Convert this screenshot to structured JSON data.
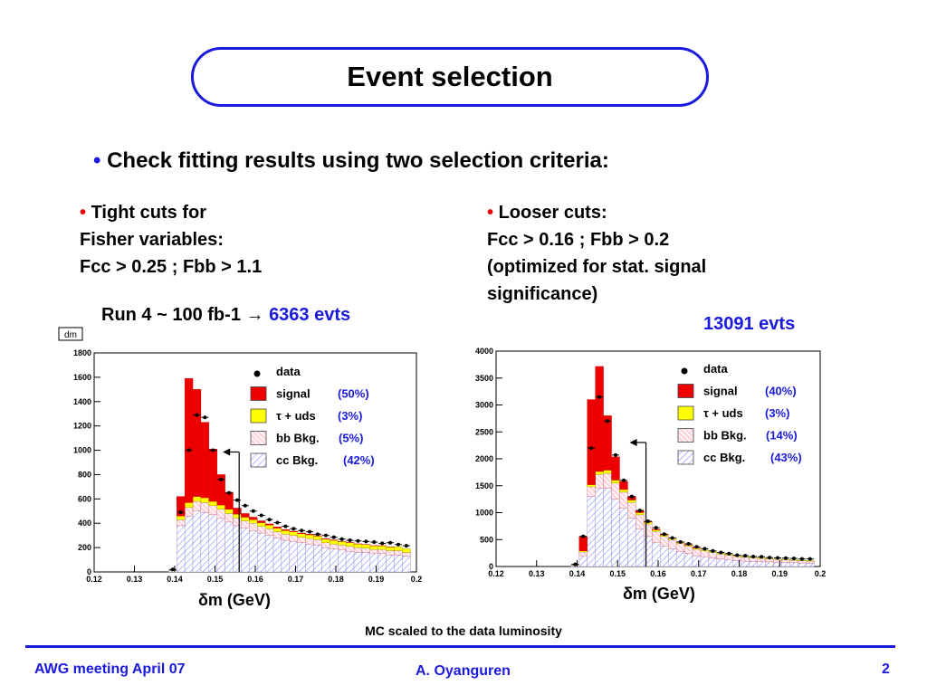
{
  "title": "Event selection",
  "main_bullet": {
    "symbol": "•",
    "text": "Check fitting results using two selection criteria:"
  },
  "left_column": {
    "symbol": "•",
    "line1": "Tight cuts for",
    "line2": "Fisher variables:",
    "line3": "Fcc > 0.25 ; Fbb > 1.1"
  },
  "right_column": {
    "symbol": "•",
    "line1": "Looser cuts:",
    "line2": "Fcc > 0.16 ; Fbb > 0.2",
    "line3": "(optimized for stat. signal",
    "line4": "significance)"
  },
  "run_label": {
    "prefix": "Run 4  ~ 100 fb-1 → ",
    "events": "6363 evts"
  },
  "right_events": "13091 evts",
  "xlabel_left": "δm  (GeV)",
  "xlabel_right": "δm  (GeV)",
  "note": "MC scaled to the data luminosity",
  "footer": {
    "left": "AWG meeting April 07",
    "center": "A. Oyanguren",
    "right": "2"
  },
  "colors": {
    "accent": "#1a1adf",
    "signal": "#ee0000",
    "tau_uds": "#ffff00",
    "bb": "#ffb0c0",
    "cc": "#a8a8ff"
  },
  "chart_data": [
    {
      "type": "bar",
      "stacked": true,
      "histogram_title": "dm",
      "xlim": [
        0.12,
        0.2
      ],
      "ylim": [
        0,
        1800
      ],
      "x_ticks": [
        "0.12",
        "0.13",
        "0.14",
        "0.15",
        "0.16",
        "0.17",
        "0.18",
        "0.19",
        "0.2"
      ],
      "y_ticks": [
        "0",
        "200",
        "400",
        "600",
        "800",
        "1000",
        "1200",
        "1400",
        "1600",
        "1800"
      ],
      "x": [
        0.1395,
        0.1415,
        0.1435,
        0.1455,
        0.1475,
        0.1495,
        0.1515,
        0.1535,
        0.1555,
        0.1575,
        0.1595,
        0.1615,
        0.1635,
        0.1655,
        0.1675,
        0.1695,
        0.1715,
        0.1735,
        0.1755,
        0.1775,
        0.1795,
        0.1815,
        0.1835,
        0.1855,
        0.1875,
        0.1895,
        0.1915,
        0.1935,
        0.1955,
        0.1975
      ],
      "cut_value": 0.156,
      "series": [
        {
          "name": "cc Bkg.",
          "fraction": "(42%)",
          "values": [
            10,
            380,
            460,
            500,
            490,
            470,
            440,
            410,
            380,
            360,
            340,
            320,
            300,
            280,
            260,
            250,
            240,
            230,
            220,
            200,
            190,
            180,
            170,
            160,
            160,
            150,
            150,
            140,
            140,
            130
          ]
        },
        {
          "name": "bb Bkg.",
          "fraction": "(5%)",
          "values": [
            2,
            50,
            70,
            80,
            80,
            75,
            75,
            70,
            65,
            60,
            60,
            55,
            55,
            50,
            50,
            50,
            45,
            45,
            45,
            40,
            40,
            40,
            40,
            40,
            35,
            35,
            35,
            35,
            35,
            30
          ]
        },
        {
          "name": "τ + uds",
          "fraction": "(3%)",
          "values": [
            1,
            30,
            40,
            40,
            40,
            35,
            35,
            35,
            30,
            30,
            30,
            30,
            30,
            30,
            30,
            30,
            30,
            30,
            30,
            30,
            30,
            30,
            30,
            30,
            30,
            30,
            30,
            30,
            30,
            30
          ]
        },
        {
          "name": "signal",
          "fraction": "(50%)",
          "values": [
            0,
            160,
            1020,
            880,
            620,
            430,
            250,
            140,
            50,
            30,
            20,
            15,
            10,
            10,
            8,
            5,
            5,
            5,
            3,
            3,
            2,
            2,
            2,
            1,
            1,
            1,
            1,
            1,
            0,
            0
          ]
        }
      ],
      "data_points": [
        20,
        490,
        1000,
        1290,
        1270,
        1000,
        760,
        650,
        590,
        545,
        500,
        465,
        430,
        405,
        375,
        355,
        340,
        330,
        310,
        300,
        285,
        270,
        260,
        255,
        250,
        245,
        235,
        240,
        225,
        215
      ],
      "legend": [
        {
          "label": "data",
          "fraction": ""
        },
        {
          "label": "signal",
          "fraction": "(50%)"
        },
        {
          "label": "τ + uds",
          "fraction": "(3%)"
        },
        {
          "label": "bb Bkg.",
          "fraction": "(5%)"
        },
        {
          "label": "cc Bkg.",
          "fraction": "(42%)"
        }
      ],
      "xlabel": "δm  (GeV)"
    },
    {
      "type": "bar",
      "stacked": true,
      "xlim": [
        0.12,
        0.2
      ],
      "ylim": [
        0,
        4000
      ],
      "x_ticks": [
        "0.12",
        "0.13",
        "0.14",
        "0.15",
        "0.16",
        "0.17",
        "0.18",
        "0.19",
        "0.2"
      ],
      "y_ticks": [
        "0",
        "500",
        "1000",
        "1500",
        "2000",
        "2500",
        "3000",
        "3500",
        "4000"
      ],
      "x": [
        0.1395,
        0.1415,
        0.1435,
        0.1455,
        0.1475,
        0.1495,
        0.1515,
        0.1535,
        0.1555,
        0.1575,
        0.1595,
        0.1615,
        0.1635,
        0.1655,
        0.1675,
        0.1695,
        0.1715,
        0.1735,
        0.1755,
        0.1775,
        0.1795,
        0.1815,
        0.1835,
        0.1855,
        0.1875,
        0.1895,
        0.1915,
        0.1935,
        0.1955,
        0.1975
      ],
      "cut_value": 0.157,
      "series": [
        {
          "name": "cc Bkg.",
          "fraction": "(43%)",
          "values": [
            20,
            200,
            1300,
            1460,
            1450,
            1250,
            1080,
            900,
            700,
            560,
            450,
            380,
            330,
            280,
            240,
            200,
            180,
            160,
            140,
            130,
            110,
            100,
            95,
            90,
            85,
            80,
            75,
            70,
            65,
            60
          ]
        },
        {
          "name": "bb Bkg.",
          "fraction": "(14%)",
          "values": [
            5,
            70,
            180,
            250,
            280,
            300,
            300,
            290,
            260,
            230,
            200,
            180,
            170,
            150,
            140,
            120,
            110,
            100,
            90,
            80,
            75,
            70,
            65,
            60,
            55,
            50,
            45,
            45,
            40,
            40
          ]
        },
        {
          "name": "τ + uds",
          "fraction": "(3%)",
          "values": [
            1,
            20,
            40,
            55,
            60,
            55,
            50,
            45,
            40,
            35,
            30,
            25,
            25,
            20,
            20,
            20,
            15,
            15,
            15,
            15,
            10,
            10,
            10,
            10,
            10,
            10,
            10,
            10,
            10,
            10
          ]
        },
        {
          "name": "signal",
          "fraction": "(40%)",
          "values": [
            0,
            260,
            1580,
            1950,
            1010,
            430,
            150,
            60,
            40,
            15,
            10,
            5,
            5,
            5,
            5,
            5,
            0,
            0,
            0,
            0,
            0,
            0,
            0,
            0,
            0,
            0,
            0,
            0,
            0,
            0
          ]
        }
      ],
      "data_points": [
        40,
        560,
        2200,
        3150,
        2700,
        2070,
        1600,
        1300,
        1040,
        840,
        720,
        600,
        530,
        455,
        420,
        365,
        330,
        290,
        260,
        240,
        210,
        200,
        185,
        180,
        165,
        160,
        155,
        150,
        140,
        140
      ],
      "legend": [
        {
          "label": "data",
          "fraction": ""
        },
        {
          "label": "signal",
          "fraction": "(40%)"
        },
        {
          "label": "τ + uds",
          "fraction": "(3%)"
        },
        {
          "label": "bb Bkg.",
          "fraction": "(14%)"
        },
        {
          "label": "cc Bkg.",
          "fraction": "(43%)"
        }
      ],
      "xlabel": "δm  (GeV)"
    }
  ]
}
